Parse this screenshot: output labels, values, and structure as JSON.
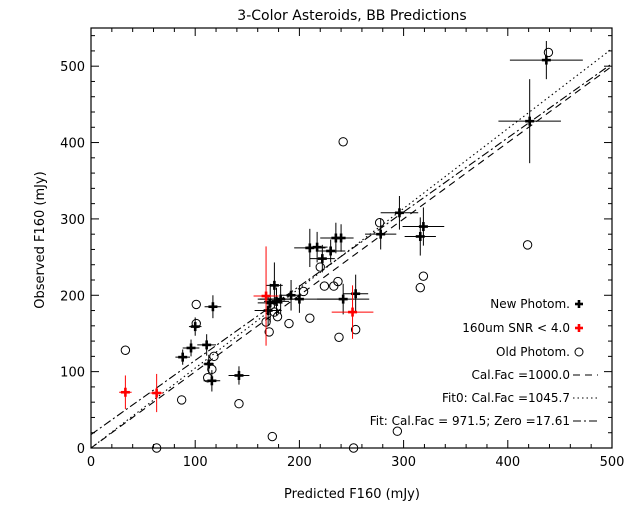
{
  "chart_data": {
    "type": "scatter",
    "title": "3-Color Asteroids, BB Predictions",
    "xlabel": "Predicted F160 (mJy)",
    "ylabel": "Observed F160 (mJy)",
    "xlim": [
      0,
      500
    ],
    "ylim": [
      0,
      550
    ],
    "xticks": [
      0,
      100,
      200,
      300,
      400,
      500
    ],
    "yticks": [
      0,
      100,
      200,
      300,
      400,
      500
    ],
    "legend_position": "bottom-right",
    "series": [
      {
        "name": "New Photom.",
        "marker": "plus",
        "color": "#000000",
        "points": [
          {
            "x": 88,
            "y": 119,
            "xerr": 7,
            "yerr": 10
          },
          {
            "x": 96,
            "y": 131,
            "xerr": 8,
            "yerr": 11
          },
          {
            "x": 100,
            "y": 159,
            "xerr": 6,
            "yerr": 12
          },
          {
            "x": 111,
            "y": 135,
            "xerr": 9,
            "yerr": 14
          },
          {
            "x": 113,
            "y": 110,
            "xerr": 5,
            "yerr": 12
          },
          {
            "x": 116,
            "y": 88,
            "xerr": 8,
            "yerr": 14
          },
          {
            "x": 117,
            "y": 185,
            "xerr": 8,
            "yerr": 15
          },
          {
            "x": 142,
            "y": 95,
            "xerr": 10,
            "yerr": 12
          },
          {
            "x": 170,
            "y": 180,
            "xerr": 13,
            "yerr": 20
          },
          {
            "x": 172,
            "y": 190,
            "xerr": 12,
            "yerr": 25
          },
          {
            "x": 176,
            "y": 213,
            "xerr": 8,
            "yerr": 30
          },
          {
            "x": 178,
            "y": 192,
            "xerr": 12,
            "yerr": 18
          },
          {
            "x": 182,
            "y": 195,
            "xerr": 20,
            "yerr": 20
          },
          {
            "x": 192,
            "y": 200,
            "xerr": 10,
            "yerr": 20
          },
          {
            "x": 200,
            "y": 195,
            "xerr": 40,
            "yerr": 18
          },
          {
            "x": 210,
            "y": 262,
            "xerr": 15,
            "yerr": 25
          },
          {
            "x": 217,
            "y": 263,
            "xerr": 10,
            "yerr": 20
          },
          {
            "x": 222,
            "y": 248,
            "xerr": 12,
            "yerr": 18
          },
          {
            "x": 230,
            "y": 258,
            "xerr": 14,
            "yerr": 15
          },
          {
            "x": 235,
            "y": 275,
            "xerr": 15,
            "yerr": 20
          },
          {
            "x": 240,
            "y": 275,
            "xerr": 12,
            "yerr": 18
          },
          {
            "x": 242,
            "y": 195,
            "xerr": 25,
            "yerr": 20
          },
          {
            "x": 254,
            "y": 202,
            "xerr": 12,
            "yerr": 25
          },
          {
            "x": 278,
            "y": 280,
            "xerr": 15,
            "yerr": 20
          },
          {
            "x": 296,
            "y": 308,
            "xerr": 18,
            "yerr": 22
          },
          {
            "x": 316,
            "y": 277,
            "xerr": 15,
            "yerr": 25
          },
          {
            "x": 319,
            "y": 290,
            "xerr": 20,
            "yerr": 25
          },
          {
            "x": 421,
            "y": 428,
            "xerr": 30,
            "yerr": 55
          },
          {
            "x": 437,
            "y": 508,
            "xerr": 35,
            "yerr": 25
          }
        ]
      },
      {
        "name": "160um SNR < 4.0",
        "marker": "plus",
        "color": "#ff0000",
        "points": [
          {
            "x": 33,
            "y": 73,
            "xerr": 6,
            "yerr": 22
          },
          {
            "x": 63,
            "y": 72,
            "xerr": 6,
            "yerr": 25
          },
          {
            "x": 168,
            "y": 199,
            "xerr": 12,
            "yerr": 65
          },
          {
            "x": 251,
            "y": 178,
            "xerr": 20,
            "yerr": 35
          }
        ]
      },
      {
        "name": "Old Photom.",
        "marker": "circle",
        "color": "#000000",
        "points": [
          {
            "x": 33,
            "y": 128
          },
          {
            "x": 63,
            "y": 0
          },
          {
            "x": 87,
            "y": 63
          },
          {
            "x": 101,
            "y": 188
          },
          {
            "x": 101,
            "y": 163
          },
          {
            "x": 116,
            "y": 103
          },
          {
            "x": 118,
            "y": 120
          },
          {
            "x": 112,
            "y": 92
          },
          {
            "x": 142,
            "y": 58
          },
          {
            "x": 168,
            "y": 165
          },
          {
            "x": 171,
            "y": 152
          },
          {
            "x": 174,
            "y": 15
          },
          {
            "x": 176,
            "y": 178
          },
          {
            "x": 179,
            "y": 172
          },
          {
            "x": 190,
            "y": 163
          },
          {
            "x": 204,
            "y": 205
          },
          {
            "x": 210,
            "y": 170
          },
          {
            "x": 220,
            "y": 237
          },
          {
            "x": 224,
            "y": 212
          },
          {
            "x": 233,
            "y": 212
          },
          {
            "x": 237,
            "y": 218
          },
          {
            "x": 238,
            "y": 145
          },
          {
            "x": 242,
            "y": 401
          },
          {
            "x": 252,
            "y": 0
          },
          {
            "x": 254,
            "y": 155
          },
          {
            "x": 277,
            "y": 295
          },
          {
            "x": 294,
            "y": 22
          },
          {
            "x": 316,
            "y": 210
          },
          {
            "x": 319,
            "y": 225
          },
          {
            "x": 419,
            "y": 266
          },
          {
            "x": 439,
            "y": 518
          }
        ]
      }
    ],
    "lines": [
      {
        "label": "Cal.Fac =1000.0",
        "style": "dashed",
        "slope": 1.0,
        "intercept": 0
      },
      {
        "label": "Fit0: Cal.Fac =1045.7",
        "style": "dotted",
        "slope": 1.0457,
        "intercept": 0
      },
      {
        "label": "Fit: Cal.Fac = 971.5; Zero =17.61",
        "style": "dashdot",
        "slope": 0.9715,
        "intercept": 17.61
      }
    ]
  }
}
